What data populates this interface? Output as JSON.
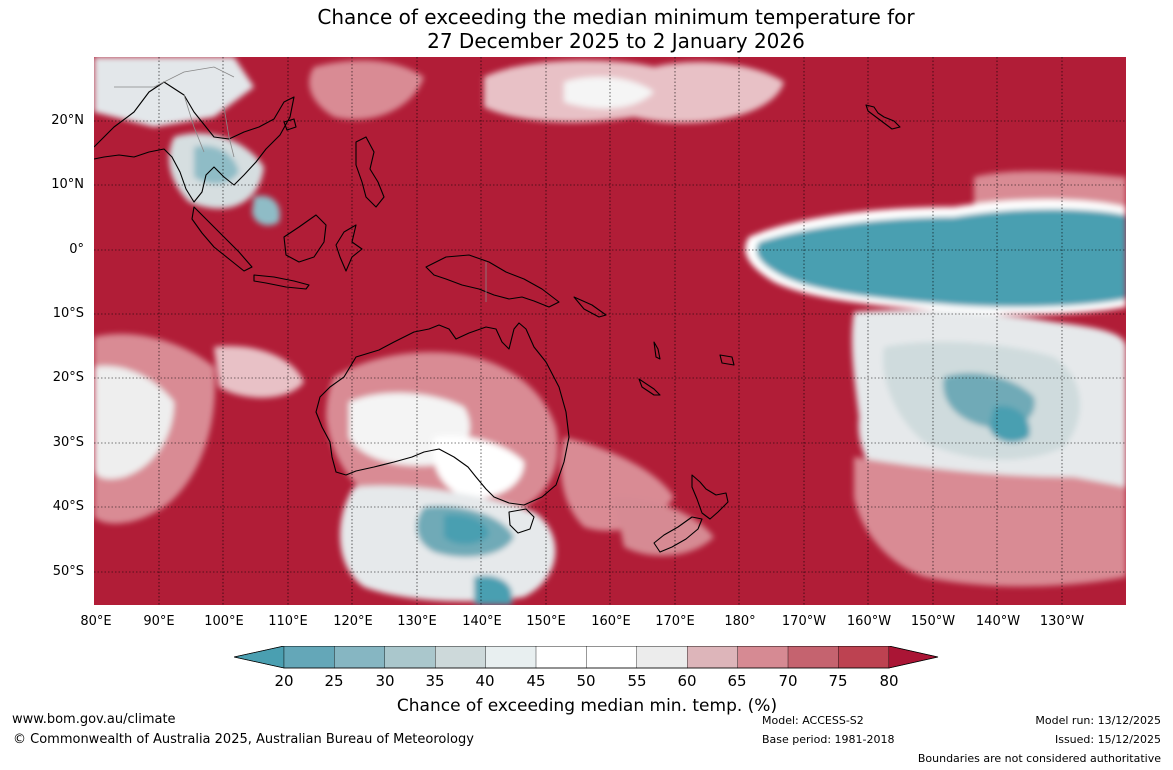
{
  "title": {
    "line1": "Chance of exceeding the median minimum temperature for",
    "line2": "27 December 2025 to 2 January 2026"
  },
  "map": {
    "lat_labels": [
      "20°N",
      "10°N",
      "0°",
      "10°S",
      "20°S",
      "30°S",
      "40°S",
      "50°S"
    ],
    "lon_labels": [
      "80°E",
      "90°E",
      "100°E",
      "110°E",
      "120°E",
      "130°E",
      "140°E",
      "150°E",
      "160°E",
      "170°E",
      "180°",
      "170°W",
      "160°W",
      "150°W",
      "140°W",
      "130°W"
    ],
    "colors": {
      "high": "#b11d37",
      "low": "#4a9fb1",
      "neutral": "#ffffff",
      "coast": "#000000",
      "border": "#888888"
    }
  },
  "colorbar": {
    "ticks": [
      "20",
      "25",
      "30",
      "35",
      "40",
      "45",
      "50",
      "55",
      "60",
      "65",
      "70",
      "75",
      "80"
    ],
    "colors": [
      "#4a9fb1",
      "#64a7b8",
      "#86b6c2",
      "#aac7cc",
      "#cdd9da",
      "#e8eff0",
      "#ffffff",
      "#ffffff",
      "#ececec",
      "#ddb5ba",
      "#d68a93",
      "#c5636f",
      "#bd4251",
      "#aa1535"
    ],
    "label": "Chance of exceeding median min. temp. (%)"
  },
  "footer": {
    "website": "www.bom.gov.au/climate",
    "copyright": "© Commonwealth of Australia 2025, Australian Bureau of Meteorology",
    "model": "Model: ACCESS-S2",
    "base_period": "Base period: 1981-2018",
    "model_run": "Model run: 13/12/2025",
    "issued": "Issued: 15/12/2025",
    "disclaimer": "Boundaries are not considered authoritative"
  }
}
